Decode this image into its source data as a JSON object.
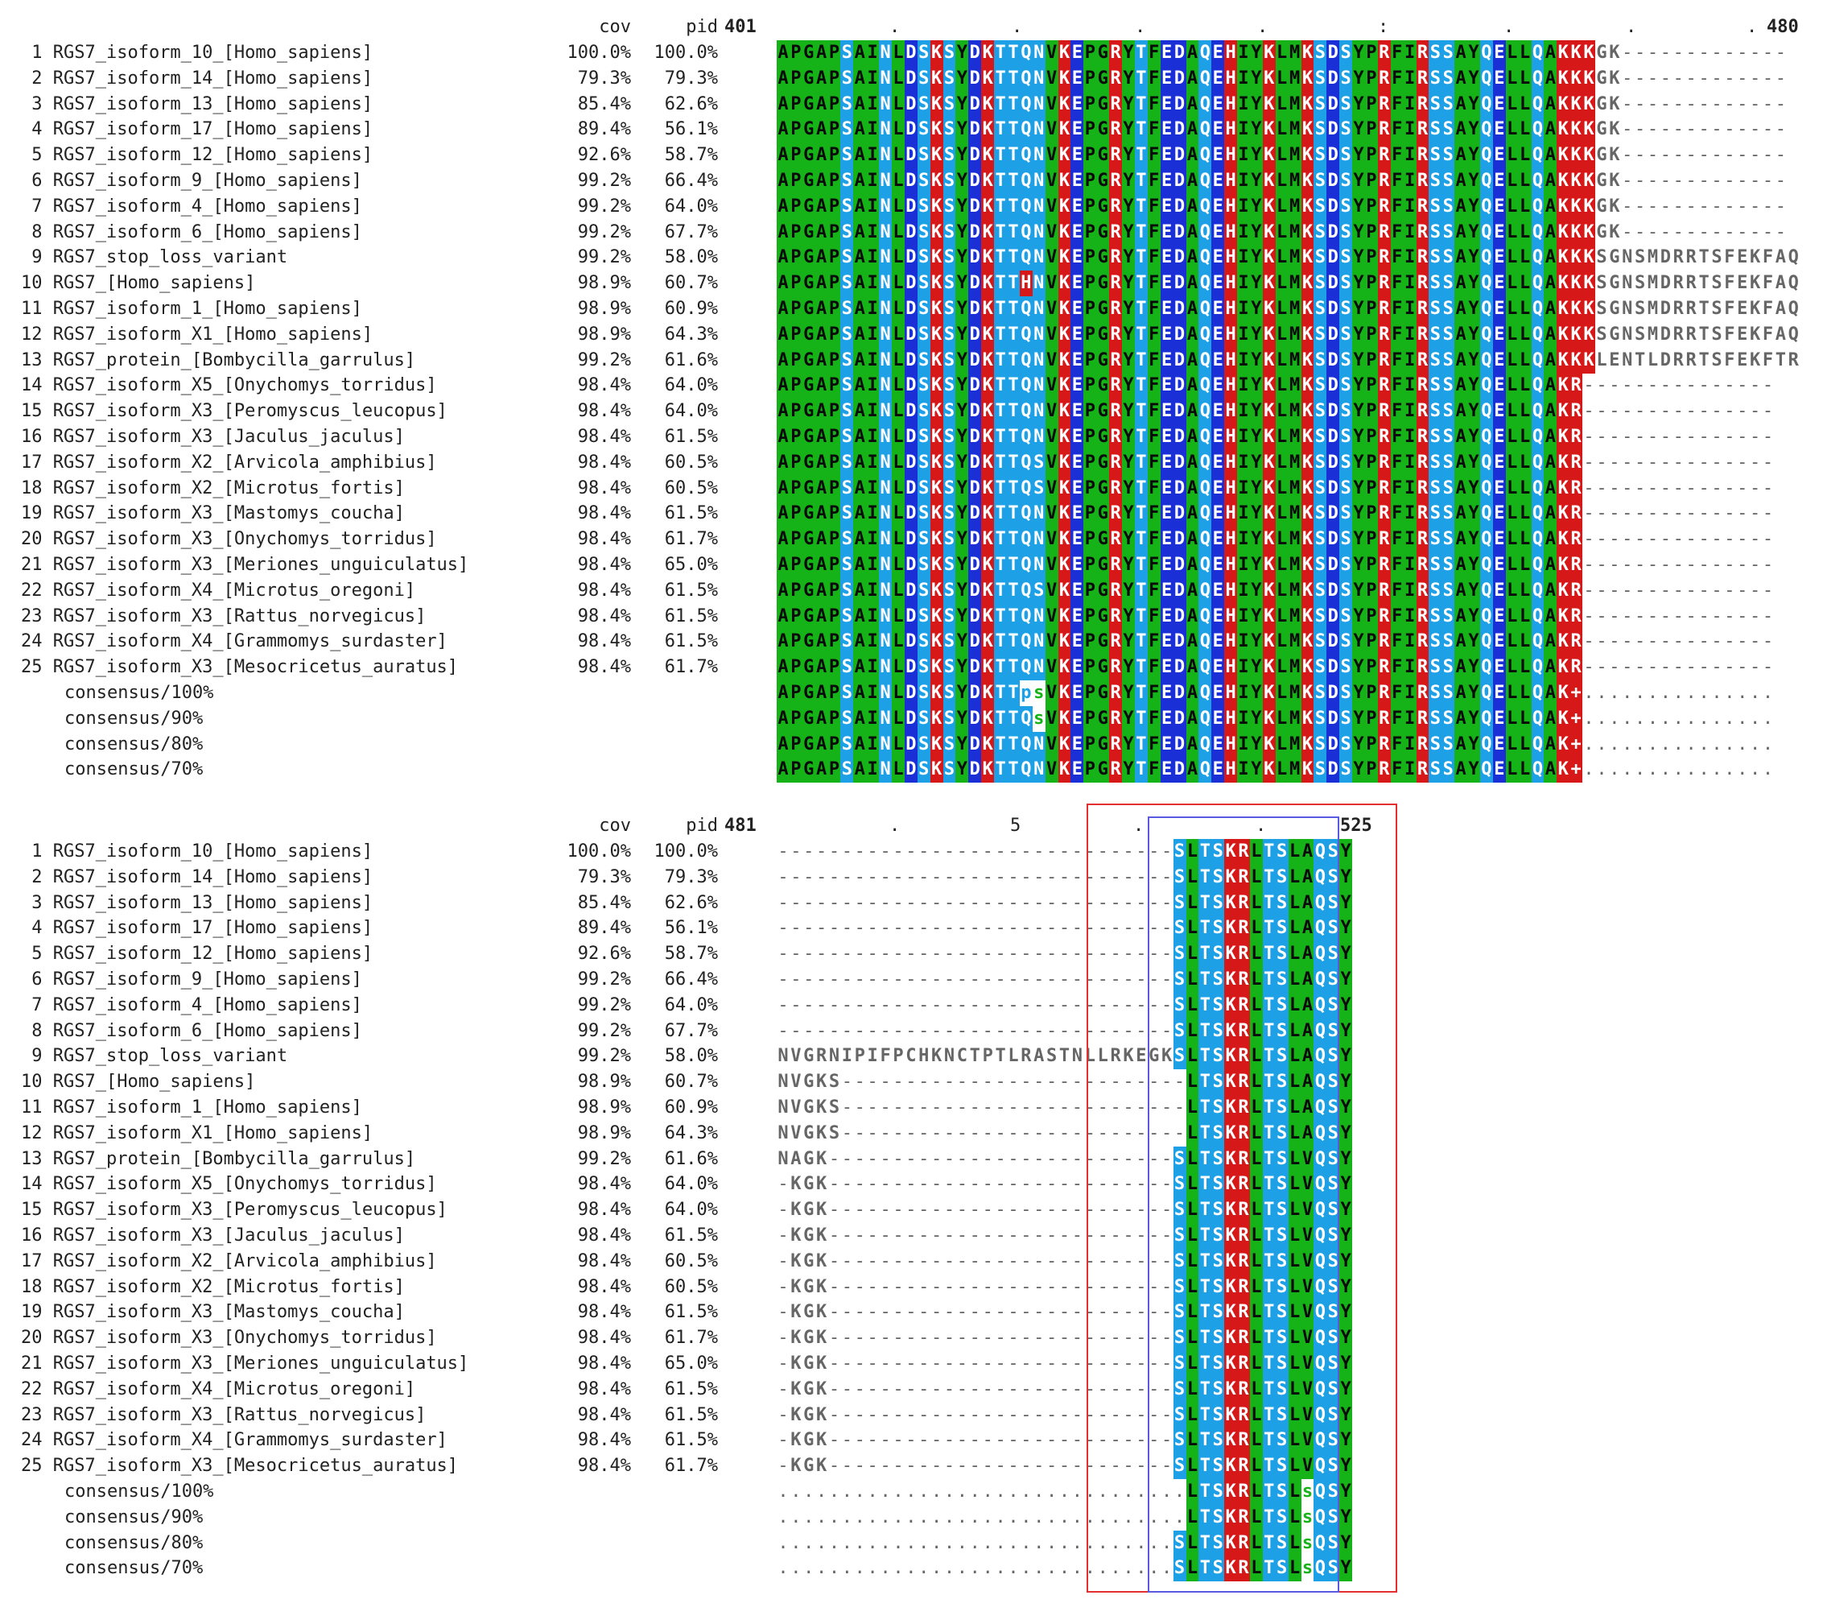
{
  "columns": {
    "cov": "cov",
    "pid": "pid"
  },
  "block1": {
    "start": "401",
    "end": "480",
    "ruler_marks": [
      ".",
      ".",
      ".",
      ".",
      ":",
      ".",
      ".",
      "."
    ],
    "rows": [
      {
        "label": " 1 RGS7_isoform_10_[Homo_sapiens]",
        "cov": "100.0%",
        "pid": "100.0%",
        "seq": "APGAPSAINLDSKSYDKTTQNVKEPGRYTFEDAQEHIYKLMKSDSYPRFIRSSAYQELLQAKKKGK-------------"
      },
      {
        "label": " 2 RGS7_isoform_14_[Homo_sapiens]",
        "cov": "79.3%",
        "pid": "79.3%",
        "seq": "APGAPSAINLDSKSYDKTTQNVKEPGRYTFEDAQEHIYKLMKSDSYPRFIRSSAYQELLQAKKKGK-------------"
      },
      {
        "label": " 3 RGS7_isoform_13_[Homo_sapiens]",
        "cov": "85.4%",
        "pid": "62.6%",
        "seq": "APGAPSAINLDSKSYDKTTQNVKEPGRYTFEDAQEHIYKLMKSDSYPRFIRSSAYQELLQAKKKGK-------------"
      },
      {
        "label": " 4 RGS7_isoform_17_[Homo_sapiens]",
        "cov": "89.4%",
        "pid": "56.1%",
        "seq": "APGAPSAINLDSKSYDKTTQNVKEPGRYTFEDAQEHIYKLMKSDSYPRFIRSSAYQELLQAKKKGK-------------"
      },
      {
        "label": " 5 RGS7_isoform_12_[Homo_sapiens]",
        "cov": "92.6%",
        "pid": "58.7%",
        "seq": "APGAPSAINLDSKSYDKTTQNVKEPGRYTFEDAQEHIYKLMKSDSYPRFIRSSAYQELLQAKKKGK-------------"
      },
      {
        "label": " 6 RGS7_isoform_9_[Homo_sapiens]",
        "cov": "99.2%",
        "pid": "66.4%",
        "seq": "APGAPSAINLDSKSYDKTTQNVKEPGRYTFEDAQEHIYKLMKSDSYPRFIRSSAYQELLQAKKKGK-------------"
      },
      {
        "label": " 7 RGS7_isoform_4_[Homo_sapiens]",
        "cov": "99.2%",
        "pid": "64.0%",
        "seq": "APGAPSAINLDSKSYDKTTQNVKEPGRYTFEDAQEHIYKLMKSDSYPRFIRSSAYQELLQAKKKGK-------------"
      },
      {
        "label": " 8 RGS7_isoform_6_[Homo_sapiens]",
        "cov": "99.2%",
        "pid": "67.7%",
        "seq": "APGAPSAINLDSKSYDKTTQNVKEPGRYTFEDAQEHIYKLMKSDSYPRFIRSSAYQELLQAKKKGK-------------"
      },
      {
        "label": " 9 RGS7_stop_loss_variant",
        "cov": "99.2%",
        "pid": "58.0%",
        "seq": "APGAPSAINLDSKSYDKTTQNVKEPGRYTFEDAQEHIYKLMKSDSYPRFIRSSAYQELLQAKKKSGNSMDRRTSFEKFAQ"
      },
      {
        "label": "10 RGS7_[Homo_sapiens]",
        "cov": "98.9%",
        "pid": "60.7%",
        "seq": "APGAPSAINLDSKSYDKTTHNVKEPGRYTFEDAQEHIYKLMKSDSYPRFIRSSAYQELLQAKKKSGNSMDRRTSFEKFAQ"
      },
      {
        "label": "11 RGS7_isoform_1_[Homo_sapiens]",
        "cov": "98.9%",
        "pid": "60.9%",
        "seq": "APGAPSAINLDSKSYDKTTQNVKEPGRYTFEDAQEHIYKLMKSDSYPRFIRSSAYQELLQAKKKSGNSMDRRTSFEKFAQ"
      },
      {
        "label": "12 RGS7_isoform_X1_[Homo_sapiens]",
        "cov": "98.9%",
        "pid": "64.3%",
        "seq": "APGAPSAINLDSKSYDKTTQNVKEPGRYTFEDAQEHIYKLMKSDSYPRFIRSSAYQELLQAKKKSGNSMDRRTSFEKFAQ"
      },
      {
        "label": "13 RGS7_protein_[Bombycilla_garrulus]",
        "cov": "99.2%",
        "pid": "61.6%",
        "seq": "APGAPSAINLDSKSYDKTTQNVKEPGRYTFEDAQEHIYKLMKSDSYPRFIRSSAYQELLQAKKKLENTLDRRTSFEKFTR"
      },
      {
        "label": "14 RGS7_isoform_X5_[Onychomys_torridus]",
        "cov": "98.4%",
        "pid": "64.0%",
        "seq": "APGAPSAINLDSKSYDKTTQNVKEPGRYTFEDAQEHIYKLMKSDSYPRFIRSSAYQELLQAKR---------------"
      },
      {
        "label": "15 RGS7_isoform_X3_[Peromyscus_leucopus]",
        "cov": "98.4%",
        "pid": "64.0%",
        "seq": "APGAPSAINLDSKSYDKTTQNVKEPGRYTFEDAQEHIYKLMKSDSYPRFIRSSAYQELLQAKR---------------"
      },
      {
        "label": "16 RGS7_isoform_X3_[Jaculus_jaculus]",
        "cov": "98.4%",
        "pid": "61.5%",
        "seq": "APGAPSAINLDSKSYDKTTQNVKEPGRYTFEDAQEHIYKLMKSDSYPRFIRSSAYQELLQAKR---------------"
      },
      {
        "label": "17 RGS7_isoform_X2_[Arvicola_amphibius]",
        "cov": "98.4%",
        "pid": "60.5%",
        "seq": "APGAPSAINLDSKSYDKTTQSVKEPGRYTFEDAQEHIYKLMKSDSYPRFIRSSAYQELLQAKR---------------"
      },
      {
        "label": "18 RGS7_isoform_X2_[Microtus_fortis]",
        "cov": "98.4%",
        "pid": "60.5%",
        "seq": "APGAPSAINLDSKSYDKTTQSVKEPGRYTFEDAQEHIYKLMKSDSYPRFIRSSAYQELLQAKR---------------"
      },
      {
        "label": "19 RGS7_isoform_X3_[Mastomys_coucha]",
        "cov": "98.4%",
        "pid": "61.5%",
        "seq": "APGAPSAINLDSKSYDKTTQNVKEPGRYTFEDAQEHIYKLMKSDSYPRFIRSSAYQELLQAKR---------------"
      },
      {
        "label": "20 RGS7_isoform_X3_[Onychomys_torridus]",
        "cov": "98.4%",
        "pid": "61.7%",
        "seq": "APGAPSAINLDSKSYDKTTQNVKEPGRYTFEDAQEHIYKLMKSDSYPRFIRSSAYQELLQAKR---------------"
      },
      {
        "label": "21 RGS7_isoform_X3_[Meriones_unguiculatus]",
        "cov": "98.4%",
        "pid": "65.0%",
        "seq": "APGAPSAINLDSKSYDKTTQNVKEPGRYTFEDAQEHIYKLMKSDSYPRFIRSSAYQELLQAKR---------------"
      },
      {
        "label": "22 RGS7_isoform_X4_[Microtus_oregoni]",
        "cov": "98.4%",
        "pid": "61.5%",
        "seq": "APGAPSAINLDSKSYDKTTQSVKEPGRYTFEDAQEHIYKLMKSDSYPRFIRSSAYQELLQAKR---------------"
      },
      {
        "label": "23 RGS7_isoform_X3_[Rattus_norvegicus]",
        "cov": "98.4%",
        "pid": "61.5%",
        "seq": "APGAPSAINLDSKSYDKTTQNVKEPGRYTFEDAQEHIYKLMKSDSYPRFIRSSAYQELLQAKR---------------"
      },
      {
        "label": "24 RGS7_isoform_X4_[Grammomys_surdaster]",
        "cov": "98.4%",
        "pid": "61.5%",
        "seq": "APGAPSAINLDSKSYDKTTQNVKEPGRYTFEDAQEHIYKLMKSDSYPRFIRSSAYQELLQAKR---------------"
      },
      {
        "label": "25 RGS7_isoform_X3_[Mesocricetus_auratus]",
        "cov": "98.4%",
        "pid": "61.7%",
        "seq": "APGAPSAINLDSKSYDKTTQNVKEPGRYTFEDAQEHIYKLMKSDSYPRFIRSSAYQELLQAKR---------------"
      }
    ],
    "consensus": [
      {
        "label": "consensus/100%",
        "seq": "APGAPSAINLDSKSYDKTTpsVKEPGRYTFEDAQEHIYKLMKSDSYPRFIRSSAYQELLQAK+..............."
      },
      {
        "label": "consensus/90%",
        "seq": "APGAPSAINLDSKSYDKTTQsVKEPGRYTFEDAQEHIYKLMKSDSYPRFIRSSAYQELLQAK+..............."
      },
      {
        "label": "consensus/80%",
        "seq": "APGAPSAINLDSKSYDKTTQNVKEPGRYTFEDAQEHIYKLMKSDSYPRFIRSSAYQELLQAK+..............."
      },
      {
        "label": "consensus/70%",
        "seq": "APGAPSAINLDSKSYDKTTQNVKEPGRYTFEDAQEHIYKLMKSDSYPRFIRSSAYQELLQAK+..............."
      }
    ]
  },
  "block2": {
    "start": "481",
    "end": "525",
    "ruler_marks": [
      ".",
      "5",
      ".",
      "."
    ],
    "rows": [
      {
        "label": " 1 RGS7_isoform_10_[Homo_sapiens]",
        "cov": "100.0%",
        "pid": "100.0%",
        "seq": "-------------------------------SLTSKRLTSLAQSY"
      },
      {
        "label": " 2 RGS7_isoform_14_[Homo_sapiens]",
        "cov": "79.3%",
        "pid": "79.3%",
        "seq": "-------------------------------SLTSKRLTSLAQSY"
      },
      {
        "label": " 3 RGS7_isoform_13_[Homo_sapiens]",
        "cov": "85.4%",
        "pid": "62.6%",
        "seq": "-------------------------------SLTSKRLTSLAQSY"
      },
      {
        "label": " 4 RGS7_isoform_17_[Homo_sapiens]",
        "cov": "89.4%",
        "pid": "56.1%",
        "seq": "-------------------------------SLTSKRLTSLAQSY"
      },
      {
        "label": " 5 RGS7_isoform_12_[Homo_sapiens]",
        "cov": "92.6%",
        "pid": "58.7%",
        "seq": "-------------------------------SLTSKRLTSLAQSY"
      },
      {
        "label": " 6 RGS7_isoform_9_[Homo_sapiens]",
        "cov": "99.2%",
        "pid": "66.4%",
        "seq": "-------------------------------SLTSKRLTSLAQSY"
      },
      {
        "label": " 7 RGS7_isoform_4_[Homo_sapiens]",
        "cov": "99.2%",
        "pid": "64.0%",
        "seq": "-------------------------------SLTSKRLTSLAQSY"
      },
      {
        "label": " 8 RGS7_isoform_6_[Homo_sapiens]",
        "cov": "99.2%",
        "pid": "67.7%",
        "seq": "-------------------------------SLTSKRLTSLAQSY"
      },
      {
        "label": " 9 RGS7_stop_loss_variant",
        "cov": "99.2%",
        "pid": "58.0%",
        "seq": "NVGRNIPIFPCHKNCTPTLRASTNLLRKEGKSLTSKRLTSLAQSY"
      },
      {
        "label": "10 RGS7_[Homo_sapiens]",
        "cov": "98.9%",
        "pid": "60.7%",
        "seq": "NVGKS---------------------------LTSKRLTSLAQSY"
      },
      {
        "label": "11 RGS7_isoform_1_[Homo_sapiens]",
        "cov": "98.9%",
        "pid": "60.9%",
        "seq": "NVGKS---------------------------LTSKRLTSLAQSY"
      },
      {
        "label": "12 RGS7_isoform_X1_[Homo_sapiens]",
        "cov": "98.9%",
        "pid": "64.3%",
        "seq": "NVGKS---------------------------LTSKRLTSLAQSY"
      },
      {
        "label": "13 RGS7_protein_[Bombycilla_garrulus]",
        "cov": "99.2%",
        "pid": "61.6%",
        "seq": "NAGK---------------------------SLTSKRLTSLVQSY"
      },
      {
        "label": "14 RGS7_isoform_X5_[Onychomys_torridus]",
        "cov": "98.4%",
        "pid": "64.0%",
        "seq": "-KGK---------------------------SLTSKRLTSLVQSY"
      },
      {
        "label": "15 RGS7_isoform_X3_[Peromyscus_leucopus]",
        "cov": "98.4%",
        "pid": "64.0%",
        "seq": "-KGK---------------------------SLTSKRLTSLVQSY"
      },
      {
        "label": "16 RGS7_isoform_X3_[Jaculus_jaculus]",
        "cov": "98.4%",
        "pid": "61.5%",
        "seq": "-KGK---------------------------SLTSKRLTSLVQSY"
      },
      {
        "label": "17 RGS7_isoform_X2_[Arvicola_amphibius]",
        "cov": "98.4%",
        "pid": "60.5%",
        "seq": "-KGK---------------------------SLTSKRLTSLVQSY"
      },
      {
        "label": "18 RGS7_isoform_X2_[Microtus_fortis]",
        "cov": "98.4%",
        "pid": "60.5%",
        "seq": "-KGK---------------------------SLTSKRLTSLVQSY"
      },
      {
        "label": "19 RGS7_isoform_X3_[Mastomys_coucha]",
        "cov": "98.4%",
        "pid": "61.5%",
        "seq": "-KGK---------------------------SLTSKRLTSLVQSY"
      },
      {
        "label": "20 RGS7_isoform_X3_[Onychomys_torridus]",
        "cov": "98.4%",
        "pid": "61.7%",
        "seq": "-KGK---------------------------SLTSKRLTSLVQSY"
      },
      {
        "label": "21 RGS7_isoform_X3_[Meriones_unguiculatus]",
        "cov": "98.4%",
        "pid": "65.0%",
        "seq": "-KGK---------------------------SLTSKRLTSLVQSY"
      },
      {
        "label": "22 RGS7_isoform_X4_[Microtus_oregoni]",
        "cov": "98.4%",
        "pid": "61.5%",
        "seq": "-KGK---------------------------SLTSKRLTSLVQSY"
      },
      {
        "label": "23 RGS7_isoform_X3_[Rattus_norvegicus]",
        "cov": "98.4%",
        "pid": "61.5%",
        "seq": "-KGK---------------------------SLTSKRLTSLVQSY"
      },
      {
        "label": "24 RGS7_isoform_X4_[Grammomys_surdaster]",
        "cov": "98.4%",
        "pid": "61.5%",
        "seq": "-KGK---------------------------SLTSKRLTSLVQSY"
      },
      {
        "label": "25 RGS7_isoform_X3_[Mesocricetus_auratus]",
        "cov": "98.4%",
        "pid": "61.7%",
        "seq": "-KGK---------------------------SLTSKRLTSLVQSY"
      }
    ],
    "consensus": [
      {
        "label": "consensus/100%",
        "seq": "................................LTSKRLTSLsQSY"
      },
      {
        "label": "consensus/90%",
        "seq": "................................LTSKRLTSLsQSY"
      },
      {
        "label": "consensus/80%",
        "seq": "...............................SLTSKRLTSLsQSY"
      },
      {
        "label": "consensus/70%",
        "seq": "...............................SLTSKRLTSLsQSY"
      }
    ]
  },
  "residue_colors": {
    "green_hydrophobic": "#16b318",
    "light_blue_polar": "#1ea0e6",
    "dark_blue_acidic": "#1a2fd6",
    "red_basic": "#d61818",
    "purple_special": "#8a1ac9",
    "gray_unconserved_text": "#666666",
    "highlight_box_outer": "#e23030",
    "highlight_box_inner": "#5a5ae0"
  }
}
